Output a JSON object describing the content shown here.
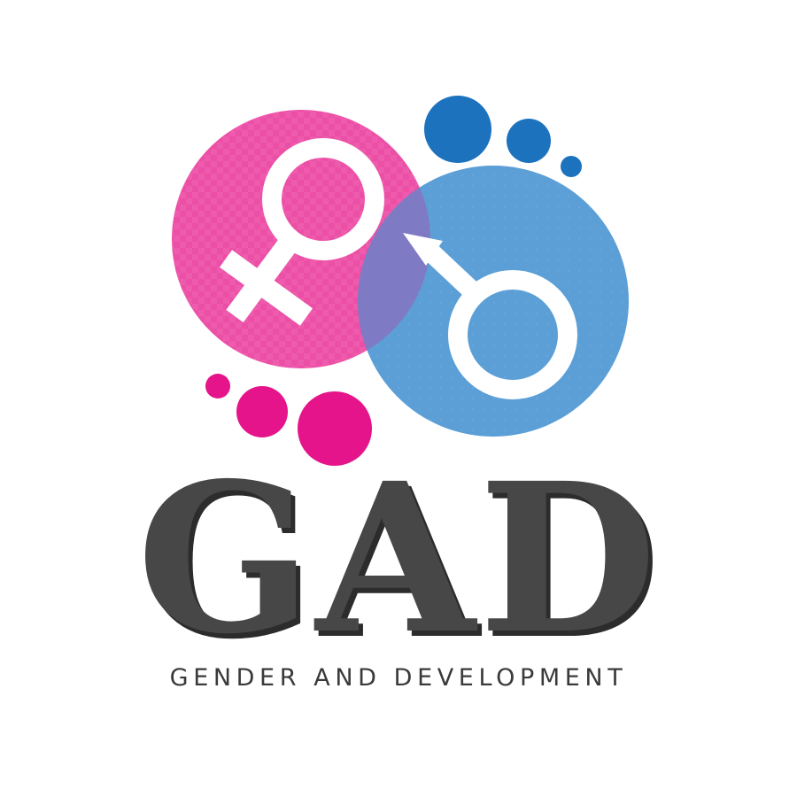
{
  "logo": {
    "acronym": "GAD",
    "tagline": "GENDER AND DEVELOPMENT",
    "icons": [
      "female-symbol-icon",
      "male-symbol-icon"
    ]
  },
  "colors": {
    "pink": "#ec4fa6",
    "magenta_dot": "#e5148a",
    "blue": "#5b9fd6",
    "blue_dot": "#1d72be",
    "overlap": "#8376c2",
    "text_dark": "#474747",
    "text_shadow": "#2c2c2c",
    "symbol": "#ffffff"
  }
}
